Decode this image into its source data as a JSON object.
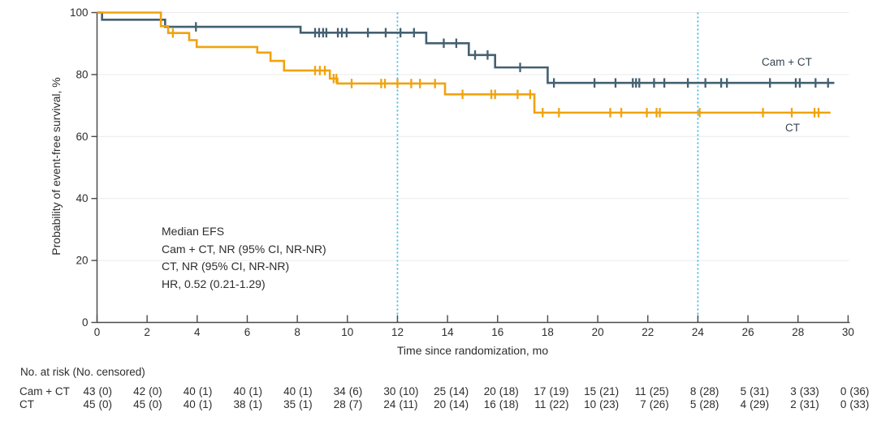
{
  "chart_data": {
    "type": "line",
    "subtype": "kaplan_meier_step",
    "title": "",
    "xlabel": "Time since randomization, mo",
    "ylabel": "Probability of event-free survival, %",
    "xlim": [
      0,
      30
    ],
    "ylim": [
      0,
      100
    ],
    "x_ticks": [
      0,
      2,
      4,
      6,
      8,
      10,
      12,
      14,
      16,
      18,
      20,
      22,
      24,
      26,
      28,
      30
    ],
    "y_ticks": [
      0,
      20,
      40,
      60,
      80,
      100
    ],
    "grid": "horizontal",
    "legend_position": "labels-on-plot",
    "reference_lines_x": [
      12,
      24
    ],
    "series": [
      {
        "name": "Cam + CT",
        "color": "#446071",
        "end_time": 29.45,
        "steps": [
          [
            0,
            100
          ],
          [
            0.2,
            97.7
          ],
          [
            2.72,
            95.4
          ],
          [
            8.13,
            93.5
          ],
          [
            13.15,
            90.1
          ],
          [
            14.85,
            86.3
          ],
          [
            15.9,
            82.3
          ],
          [
            18.0,
            77.3
          ]
        ],
        "censors": [
          [
            3.95,
            95.4
          ],
          [
            8.71,
            93.5
          ],
          [
            8.87,
            93.5
          ],
          [
            9.03,
            93.5
          ],
          [
            9.16,
            93.5
          ],
          [
            9.62,
            93.5
          ],
          [
            9.78,
            93.5
          ],
          [
            9.97,
            93.5
          ],
          [
            10.82,
            93.5
          ],
          [
            11.53,
            93.5
          ],
          [
            12.12,
            93.5
          ],
          [
            12.66,
            93.5
          ],
          [
            13.85,
            90.1
          ],
          [
            14.35,
            90.1
          ],
          [
            15.1,
            86.3
          ],
          [
            15.6,
            86.3
          ],
          [
            16.9,
            82.3
          ],
          [
            18.25,
            77.3
          ],
          [
            19.87,
            77.3
          ],
          [
            20.71,
            77.3
          ],
          [
            21.4,
            77.3
          ],
          [
            21.53,
            77.3
          ],
          [
            21.66,
            77.3
          ],
          [
            22.25,
            77.3
          ],
          [
            22.66,
            77.3
          ],
          [
            23.6,
            77.3
          ],
          [
            24.3,
            77.3
          ],
          [
            24.93,
            77.3
          ],
          [
            25.16,
            77.3
          ],
          [
            26.88,
            77.3
          ],
          [
            27.91,
            77.3
          ],
          [
            28.07,
            77.3
          ],
          [
            28.7,
            77.3
          ],
          [
            29.2,
            77.3
          ]
        ]
      },
      {
        "name": "CT",
        "color": "#f0a30e",
        "end_time": 29.3,
        "steps": [
          [
            0,
            100
          ],
          [
            2.55,
            95.6
          ],
          [
            2.84,
            93.4
          ],
          [
            3.68,
            91.1
          ],
          [
            3.98,
            88.9
          ],
          [
            6.4,
            87.1
          ],
          [
            6.93,
            84.4
          ],
          [
            7.47,
            81.3
          ],
          [
            9.3,
            78.7
          ],
          [
            9.6,
            77.1
          ],
          [
            13.9,
            73.6
          ],
          [
            17.47,
            67.7
          ]
        ],
        "censors": [
          [
            3.03,
            93.4
          ],
          [
            8.71,
            81.3
          ],
          [
            8.9,
            81.3
          ],
          [
            9.1,
            81.3
          ],
          [
            9.45,
            78.7
          ],
          [
            9.56,
            78.7
          ],
          [
            10.17,
            77.1
          ],
          [
            11.35,
            77.1
          ],
          [
            11.5,
            77.1
          ],
          [
            12.0,
            77.1
          ],
          [
            12.55,
            77.1
          ],
          [
            12.9,
            77.1
          ],
          [
            13.5,
            77.1
          ],
          [
            14.6,
            73.6
          ],
          [
            15.75,
            73.6
          ],
          [
            15.9,
            73.6
          ],
          [
            16.8,
            73.6
          ],
          [
            17.3,
            73.6
          ],
          [
            17.8,
            67.7
          ],
          [
            18.45,
            67.7
          ],
          [
            20.5,
            67.7
          ],
          [
            20.94,
            67.7
          ],
          [
            21.96,
            67.7
          ],
          [
            22.35,
            67.7
          ],
          [
            22.48,
            67.7
          ],
          [
            24.07,
            67.7
          ],
          [
            26.6,
            67.7
          ],
          [
            27.75,
            67.7
          ],
          [
            28.66,
            67.7
          ],
          [
            28.82,
            67.7
          ]
        ]
      }
    ],
    "annotation": {
      "lines": [
        "Median EFS",
        "Cam + CT, NR (95% CI, NR-NR)",
        "CT, NR (95% CI, NR-NR)",
        "HR, 0.52 (0.21-1.29)"
      ]
    }
  },
  "risk_table": {
    "header": "No. at risk (No. censored)",
    "times": [
      0,
      2,
      4,
      6,
      8,
      10,
      12,
      14,
      16,
      18,
      20,
      22,
      24,
      26,
      28,
      30
    ],
    "rows": [
      {
        "label": "Cam + CT",
        "values": [
          "43 (0)",
          "42 (0)",
          "40 (1)",
          "40 (1)",
          "40 (1)",
          "34 (6)",
          "30 (10)",
          "25 (14)",
          "20 (18)",
          "17 (19)",
          "15 (21)",
          "11 (25)",
          "8 (28)",
          "5 (31)",
          "3 (33)",
          "0 (36)"
        ]
      },
      {
        "label": "CT",
        "values": [
          "45 (0)",
          "45 (0)",
          "40 (1)",
          "38 (1)",
          "35 (1)",
          "28 (7)",
          "24 (11)",
          "20 (14)",
          "16 (18)",
          "11 (22)",
          "10 (23)",
          "7 (26)",
          "5 (28)",
          "4 (29)",
          "2 (31)",
          "0 (33)"
        ]
      }
    ]
  },
  "colors": {
    "cam_ct_line": "#446071",
    "ct_line": "#f0a30e",
    "reference_line": "#3cb9e7",
    "gridline": "#eaeaea",
    "axis": "#4a4a4a",
    "text": "#2d2d2d"
  }
}
